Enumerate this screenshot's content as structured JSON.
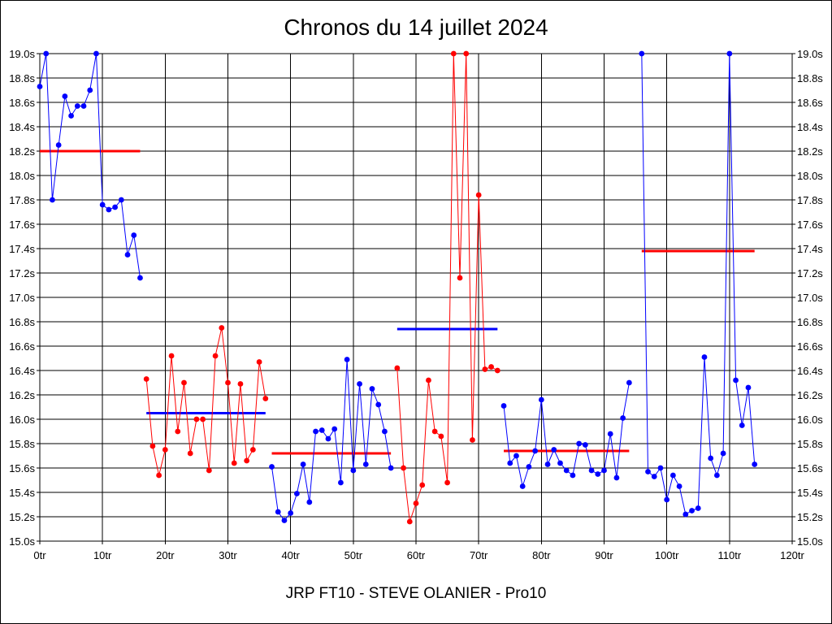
{
  "chart_data": {
    "type": "line",
    "title": "Chronos du 14 juillet 2024",
    "footer": "JRP FT10 - STEVE OLANIER - Pro10",
    "xlabel": "",
    "ylabel": "",
    "xlim": [
      0,
      120
    ],
    "ylim": [
      15.0,
      19.0
    ],
    "grid": true,
    "x_ticks": [
      0,
      10,
      20,
      30,
      40,
      50,
      60,
      70,
      80,
      90,
      100,
      110,
      120
    ],
    "x_tick_labels": [
      "0tr",
      "10tr",
      "20tr",
      "30tr",
      "40tr",
      "50tr",
      "60tr",
      "70tr",
      "80tr",
      "90tr",
      "100tr",
      "110tr",
      "120tr"
    ],
    "y_ticks": [
      15.0,
      15.2,
      15.4,
      15.6,
      15.8,
      16.0,
      16.2,
      16.4,
      16.6,
      16.8,
      17.0,
      17.2,
      17.4,
      17.6,
      17.8,
      18.0,
      18.2,
      18.4,
      18.6,
      18.8,
      19.0
    ],
    "y_tick_labels": [
      "15.0s",
      "15.2s",
      "15.4s",
      "15.6s",
      "15.8s",
      "16.0s",
      "16.2s",
      "16.4s",
      "16.6s",
      "16.8s",
      "17.0s",
      "17.2s",
      "17.4s",
      "17.6s",
      "17.8s",
      "18.0s",
      "18.2s",
      "18.4s",
      "18.6s",
      "18.8s",
      "19.0s"
    ],
    "series": [
      {
        "color": "#0000ff",
        "x": [
          0,
          1,
          2,
          3,
          4,
          5,
          6,
          7,
          8,
          9,
          10,
          11,
          12,
          13,
          14,
          15,
          16
        ],
        "values": [
          18.73,
          19.0,
          17.8,
          18.25,
          18.65,
          18.49,
          18.57,
          18.57,
          18.7,
          19.0,
          17.76,
          17.72,
          17.74,
          17.8,
          17.35,
          17.51,
          17.16
        ]
      },
      {
        "color": "#ff0000",
        "x": [
          17,
          18,
          19,
          20,
          21,
          22,
          23,
          24,
          25,
          26,
          27,
          28,
          29,
          30,
          31,
          32,
          33,
          34,
          35,
          36
        ],
        "values": [
          16.33,
          15.78,
          15.54,
          15.75,
          16.52,
          15.9,
          16.3,
          15.72,
          16.0,
          16.0,
          15.58,
          16.52,
          16.75,
          16.3,
          15.64,
          16.29,
          15.66,
          15.75,
          16.47,
          16.17
        ]
      },
      {
        "color": "#0000ff",
        "x": [
          37,
          38,
          39,
          40,
          41,
          42,
          43,
          44,
          45,
          46,
          47,
          48,
          49,
          50,
          51,
          52,
          53,
          54,
          55,
          56
        ],
        "values": [
          15.61,
          15.24,
          15.17,
          15.23,
          15.39,
          15.63,
          15.32,
          15.9,
          15.91,
          15.84,
          15.92,
          15.48,
          16.49,
          15.58,
          16.29,
          15.63,
          16.25,
          16.12,
          15.9,
          15.6
        ]
      },
      {
        "color": "#ff0000",
        "x": [
          57,
          58,
          59,
          60,
          61,
          62,
          63,
          64,
          65,
          66,
          67,
          68,
          69,
          70,
          71,
          72,
          73
        ],
        "values": [
          16.42,
          15.6,
          15.16,
          15.31,
          15.46,
          16.32,
          15.9,
          15.86,
          15.48,
          19.0,
          17.16,
          19.0,
          15.83,
          17.84,
          16.41,
          16.43,
          16.4
        ]
      },
      {
        "color": "#0000ff",
        "x": [
          74,
          75,
          76,
          77,
          78,
          79,
          80,
          81,
          82,
          83,
          84,
          85,
          86,
          87,
          88,
          89,
          90,
          91,
          92,
          93,
          94
        ],
        "values": [
          16.11,
          15.64,
          15.7,
          15.45,
          15.61,
          15.74,
          16.16,
          15.63,
          15.75,
          15.64,
          15.58,
          15.54,
          15.8,
          15.79,
          15.58,
          15.55,
          15.58,
          15.88,
          15.52,
          16.01,
          16.3
        ]
      },
      {
        "color": "#0000ff",
        "x": [
          96,
          97,
          98,
          99,
          100,
          101,
          102,
          103,
          104,
          105,
          106,
          107,
          108,
          109,
          110,
          111,
          112,
          113,
          114
        ],
        "values": [
          19.0,
          15.57,
          15.53,
          15.6,
          15.34,
          15.54,
          15.45,
          15.22,
          15.25,
          15.27,
          16.51,
          15.68,
          15.54,
          15.72,
          19.0,
          16.32,
          15.95,
          16.26,
          15.63
        ]
      }
    ],
    "average_lines": [
      {
        "color": "#ff0000",
        "x_start": 0,
        "x_end": 16,
        "value": 18.2
      },
      {
        "color": "#0000ff",
        "x_start": 17,
        "x_end": 36,
        "value": 16.05
      },
      {
        "color": "#ff0000",
        "x_start": 37,
        "x_end": 56,
        "value": 15.72
      },
      {
        "color": "#0000ff",
        "x_start": 57,
        "x_end": 73,
        "value": 16.74
      },
      {
        "color": "#ff0000",
        "x_start": 74,
        "x_end": 94,
        "value": 15.74
      },
      {
        "color": "#ff0000",
        "x_start": 96,
        "x_end": 114,
        "value": 17.38
      }
    ]
  }
}
